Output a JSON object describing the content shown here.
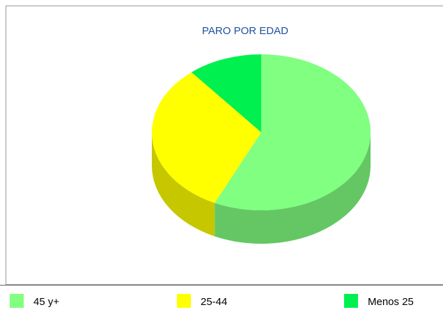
{
  "chart_data": {
    "type": "pie3d",
    "title": "PARO POR EDAD",
    "categories": [
      "45 y+",
      "25-44",
      "Menos 25"
    ],
    "values": [
      57,
      32,
      11
    ],
    "colors": [
      "#80ff80",
      "#ffff00",
      "#00f050"
    ]
  }
}
